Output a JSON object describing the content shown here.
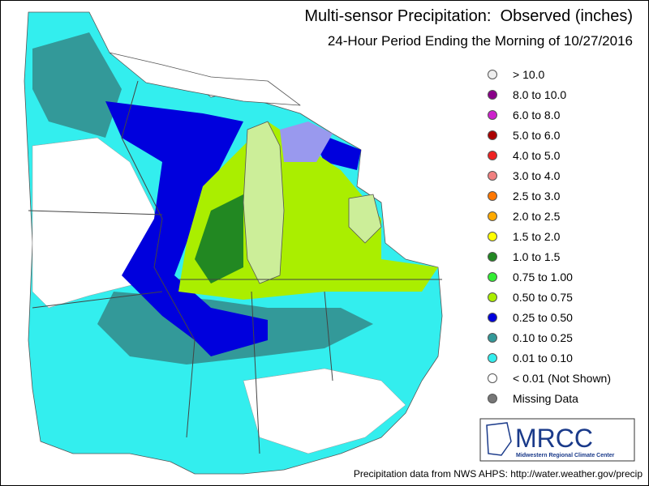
{
  "title": "Multi-sensor Precipitation:  Observed (inches)",
  "subtitle": "24-Hour Period Ending the Morning of 10/27/2016",
  "legend": [
    {
      "label": "> 10.0",
      "color": "#eeeeee"
    },
    {
      "label": "8.0 to 10.0",
      "color": "#880088"
    },
    {
      "label": "6.0 to 8.0",
      "color": "#cc22cc"
    },
    {
      "label": "5.0 to 6.0",
      "color": "#aa0000"
    },
    {
      "label": "4.0 to 5.0",
      "color": "#ee2222"
    },
    {
      "label": "3.0 to 4.0",
      "color": "#f08080"
    },
    {
      "label": "2.5 to 3.0",
      "color": "#ff7700"
    },
    {
      "label": "2.0 to 2.5",
      "color": "#ffaa00"
    },
    {
      "label": "1.5 to 2.0",
      "color": "#ffff00"
    },
    {
      "label": "1.0 to 1.5",
      "color": "#228822"
    },
    {
      "label": "0.75 to 1.00",
      "color": "#33ee33"
    },
    {
      "label": "0.50 to 0.75",
      "color": "#aaee00"
    },
    {
      "label": "0.25 to 0.50",
      "color": "#0000dd"
    },
    {
      "label": "0.10 to 0.25",
      "color": "#339999"
    },
    {
      "label": "0.01 to 0.10",
      "color": "#33eeee"
    },
    {
      "label": "< 0.01 (Not Shown)",
      "color": "#ffffff"
    },
    {
      "label": "Missing Data",
      "color": "#777777"
    }
  ],
  "logo": {
    "acronym": "MRCC",
    "name": "Midwestern Regional Climate Center"
  },
  "footer": "Precipitation data from NWS AHPS: http://water.weather.gov/precip"
}
